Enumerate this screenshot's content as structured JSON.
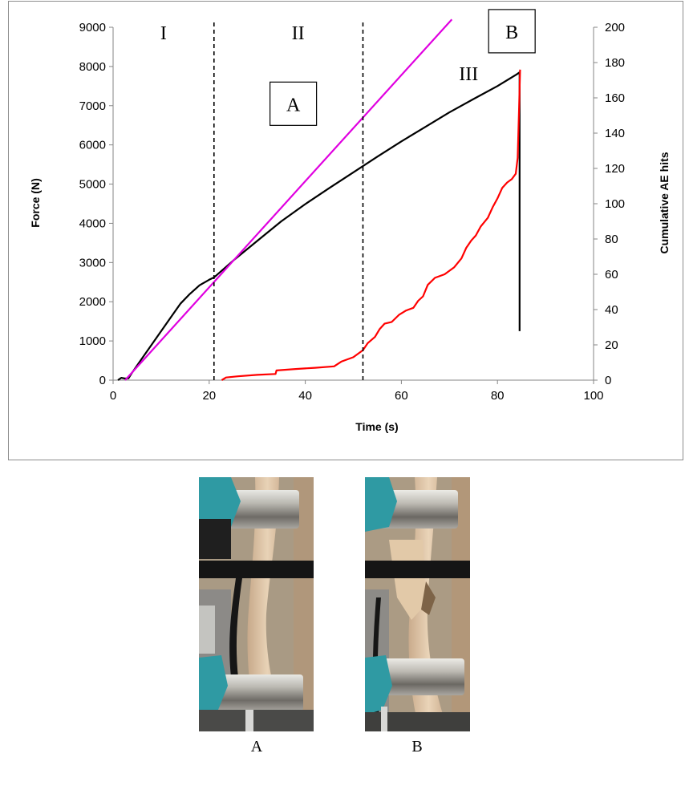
{
  "chart_data": {
    "type": "line",
    "xlabel": "Time (s)",
    "ylabel_left": "Force (N)",
    "ylabel_right": "Cumulative AE hits",
    "xlim": [
      0,
      100
    ],
    "ylim_left": [
      0,
      9000
    ],
    "ylim_right": [
      0,
      200
    ],
    "x_ticks": [
      "0",
      "20",
      "40",
      "60",
      "80",
      "100"
    ],
    "y_ticks_left": [
      "0",
      "1000",
      "2000",
      "3000",
      "4000",
      "5000",
      "6000",
      "7000",
      "8000",
      "9000"
    ],
    "y_ticks_right": [
      "0",
      "20",
      "40",
      "60",
      "80",
      "100",
      "120",
      "140",
      "160",
      "180",
      "200"
    ],
    "phase_boundaries": [
      21,
      52
    ],
    "phase_labels": [
      {
        "text": "I",
        "x": 10.5,
        "y": 8900
      },
      {
        "text": "II",
        "x": 38.5,
        "y": 8900
      },
      {
        "text": "III",
        "x": 74,
        "y": 7850
      }
    ],
    "box_labels": [
      {
        "text": "A",
        "x": 37.5,
        "y": 7050
      },
      {
        "text": "B",
        "x": 83,
        "y": 8900
      }
    ],
    "series": [
      {
        "axis": "left",
        "color": "#000000",
        "x": [
          1,
          1.7,
          2.5,
          3.2,
          4,
          6,
          8,
          10,
          12,
          14,
          16,
          18,
          20,
          21,
          25,
          30,
          35,
          40,
          45,
          50,
          55,
          60,
          65,
          70,
          75,
          80,
          84,
          84.6,
          84.6
        ],
        "values": [
          0,
          60,
          40,
          50,
          200,
          550,
          900,
          1250,
          1600,
          1950,
          2200,
          2420,
          2560,
          2620,
          3050,
          3550,
          4050,
          4490,
          4900,
          5300,
          5700,
          6090,
          6460,
          6830,
          7170,
          7500,
          7800,
          7850,
          1250
        ]
      },
      {
        "axis": "left",
        "color": "#e000e0",
        "x": [
          2.5,
          70.5
        ],
        "values": [
          0,
          9200
        ]
      },
      {
        "axis": "right",
        "color": "#ff0000",
        "x": [
          22.6,
          23.5,
          26,
          30,
          33.8,
          34,
          38,
          42,
          46,
          47.5,
          50,
          52,
          53,
          54.5,
          55.5,
          56.5,
          58,
          59.5,
          61,
          62.5,
          63.5,
          64.5,
          65.5,
          67,
          69,
          71,
          72.5,
          73.5,
          74.5,
          75.5,
          76.5,
          78,
          79,
          80,
          81,
          82,
          83,
          83.8,
          84.2,
          84.5,
          84.7
        ],
        "values": [
          0,
          1.5,
          2.2,
          3,
          3.5,
          5.5,
          6.3,
          7,
          7.8,
          10.5,
          13,
          17,
          21,
          24.5,
          29,
          32,
          33,
          37,
          39.5,
          41,
          45,
          47.5,
          54,
          58,
          60,
          64,
          69,
          75,
          79,
          82,
          87,
          92,
          98,
          103,
          109,
          112,
          114,
          117,
          126,
          155,
          176
        ]
      }
    ]
  },
  "photos": [
    {
      "caption": "A"
    },
    {
      "caption": "B"
    }
  ]
}
